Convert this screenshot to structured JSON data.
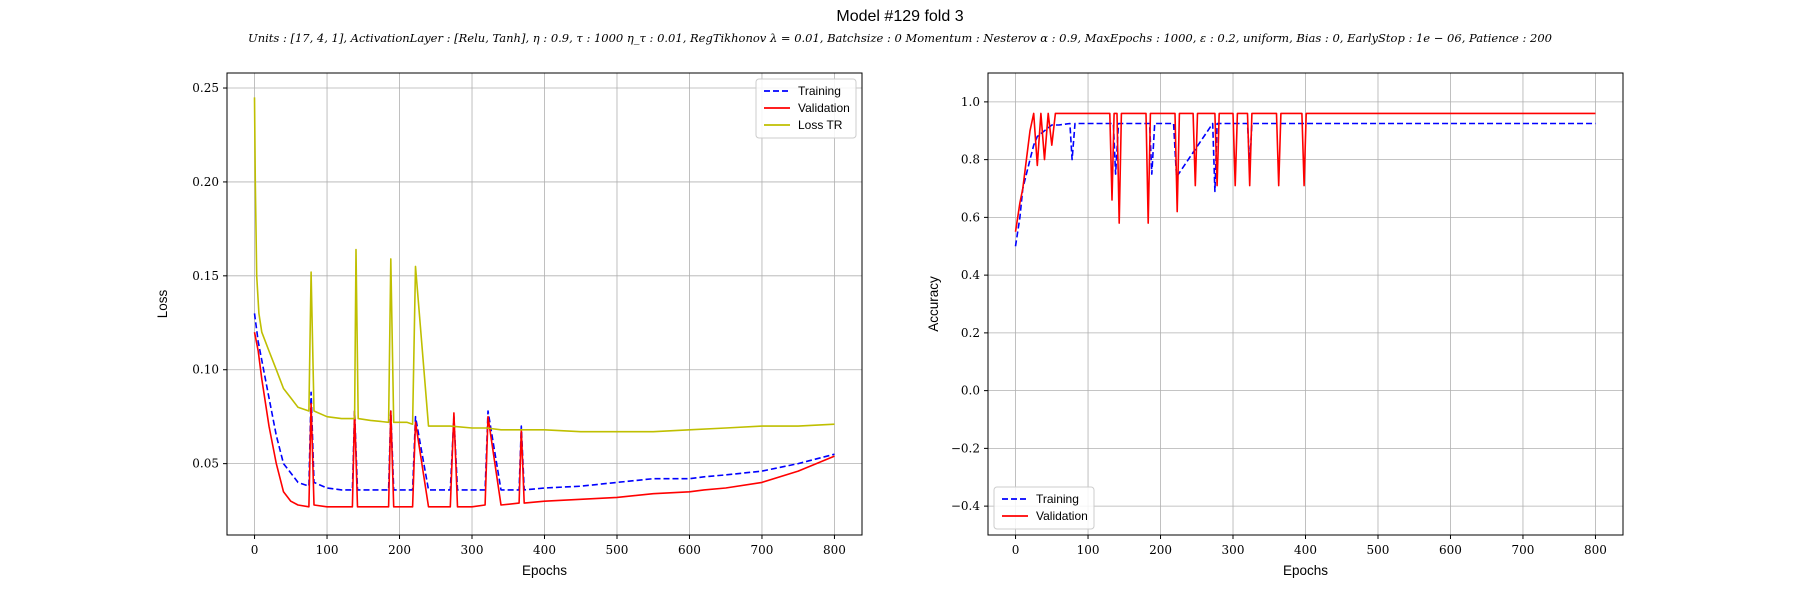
{
  "figure": {
    "title": "Model #129 fold 3",
    "subtitle": "Units : [17, 4, 1], ActivationLayer : [Relu, Tanh], η : 0.9, τ : 1000 η_τ : 0.01, RegTikhonov λ = 0.01, Batchsize : 0 Momentum : Nesterov α : 0.9, MaxEpochs : 1000, ε : 0.2, uniform, Bias : 0, EarlyStop : 1e − 06, Patience : 200"
  },
  "chart_data": [
    {
      "id": "loss",
      "type": "line",
      "title": "",
      "xlabel": "Epochs",
      "ylabel": "Loss",
      "xlim": [
        -38,
        838
      ],
      "ylim": [
        0.012,
        0.258
      ],
      "xticks": [
        0,
        100,
        200,
        300,
        400,
        500,
        600,
        700,
        800
      ],
      "yticks": [
        0.05,
        0.1,
        0.15,
        0.2,
        0.25
      ],
      "yticklabels": [
        "0.05",
        "0.10",
        "0.15",
        "0.20",
        "0.25"
      ],
      "grid": true,
      "legend_position": "top-right",
      "series": [
        {
          "name": "Training",
          "color": "#0000ff",
          "style": "dashed",
          "x": [
            0,
            5,
            10,
            20,
            30,
            40,
            50,
            60,
            75,
            78,
            82,
            100,
            120,
            135,
            138,
            142,
            160,
            185,
            188,
            192,
            210,
            218,
            222,
            240,
            270,
            275,
            280,
            300,
            318,
            322,
            340,
            365,
            368,
            372,
            400,
            450,
            500,
            550,
            600,
            620,
            650,
            700,
            750,
            800
          ],
          "y": [
            0.13,
            0.115,
            0.105,
            0.085,
            0.065,
            0.05,
            0.045,
            0.04,
            0.038,
            0.088,
            0.04,
            0.037,
            0.036,
            0.036,
            0.078,
            0.036,
            0.036,
            0.036,
            0.078,
            0.036,
            0.036,
            0.036,
            0.075,
            0.036,
            0.036,
            0.075,
            0.036,
            0.036,
            0.036,
            0.078,
            0.036,
            0.036,
            0.07,
            0.036,
            0.037,
            0.038,
            0.04,
            0.042,
            0.042,
            0.043,
            0.044,
            0.046,
            0.05,
            0.055
          ]
        },
        {
          "name": "Validation",
          "color": "#ff0000",
          "style": "solid",
          "x": [
            0,
            5,
            10,
            20,
            30,
            40,
            50,
            60,
            75,
            78,
            82,
            100,
            120,
            135,
            138,
            142,
            160,
            185,
            188,
            192,
            210,
            218,
            222,
            240,
            270,
            275,
            280,
            300,
            318,
            322,
            340,
            365,
            368,
            372,
            400,
            450,
            500,
            550,
            600,
            620,
            650,
            700,
            750,
            800
          ],
          "y": [
            0.12,
            0.11,
            0.095,
            0.07,
            0.05,
            0.035,
            0.03,
            0.028,
            0.027,
            0.082,
            0.028,
            0.027,
            0.027,
            0.027,
            0.078,
            0.027,
            0.027,
            0.027,
            0.078,
            0.027,
            0.027,
            0.027,
            0.072,
            0.027,
            0.027,
            0.077,
            0.027,
            0.027,
            0.028,
            0.075,
            0.028,
            0.029,
            0.068,
            0.029,
            0.03,
            0.031,
            0.032,
            0.034,
            0.035,
            0.036,
            0.037,
            0.04,
            0.046,
            0.054
          ]
        },
        {
          "name": "Loss TR",
          "color": "#bfbf00",
          "style": "solid",
          "x": [
            0,
            1,
            3,
            6,
            10,
            20,
            30,
            40,
            50,
            60,
            75,
            78,
            82,
            100,
            120,
            138,
            140,
            143,
            160,
            185,
            188,
            192,
            210,
            218,
            222,
            240,
            270,
            300,
            320,
            340,
            370,
            400,
            450,
            500,
            550,
            600,
            650,
            700,
            750,
            800
          ],
          "y": [
            0.245,
            0.2,
            0.15,
            0.13,
            0.12,
            0.11,
            0.1,
            0.09,
            0.085,
            0.08,
            0.078,
            0.152,
            0.078,
            0.075,
            0.074,
            0.074,
            0.164,
            0.074,
            0.073,
            0.072,
            0.159,
            0.072,
            0.072,
            0.071,
            0.155,
            0.07,
            0.07,
            0.069,
            0.069,
            0.068,
            0.068,
            0.068,
            0.067,
            0.067,
            0.067,
            0.068,
            0.069,
            0.07,
            0.07,
            0.071
          ]
        }
      ]
    },
    {
      "id": "accuracy",
      "type": "line",
      "title": "",
      "xlabel": "Epochs",
      "ylabel": "Accuracy",
      "xlim": [
        -38,
        838
      ],
      "ylim": [
        -0.5,
        1.1
      ],
      "xticks": [
        0,
        100,
        200,
        300,
        400,
        500,
        600,
        700,
        800
      ],
      "yticks": [
        -0.4,
        -0.2,
        0.0,
        0.2,
        0.4,
        0.6,
        0.8,
        1.0
      ],
      "yticklabels": [
        "−0.4",
        "−0.2",
        "0.0",
        "0.2",
        "0.4",
        "0.6",
        "0.8",
        "1.0"
      ],
      "grid": true,
      "legend_position": "bottom-left",
      "series": [
        {
          "name": "Training",
          "color": "#0000ff",
          "style": "dashed",
          "x": [
            0,
            3,
            6,
            10,
            15,
            20,
            25,
            30,
            40,
            50,
            60,
            75,
            78,
            82,
            100,
            135,
            138,
            142,
            185,
            188,
            192,
            218,
            222,
            272,
            275,
            278,
            320,
            323,
            326,
            400,
            500,
            600,
            700,
            800
          ],
          "y": [
            0.5,
            0.55,
            0.6,
            0.7,
            0.75,
            0.8,
            0.85,
            0.88,
            0.9,
            0.92,
            0.92,
            0.925,
            0.8,
            0.925,
            0.925,
            0.925,
            0.75,
            0.925,
            0.925,
            0.75,
            0.925,
            0.925,
            0.74,
            0.925,
            0.69,
            0.925,
            0.925,
            0.78,
            0.925,
            0.925,
            0.925,
            0.925,
            0.925,
            0.925
          ]
        },
        {
          "name": "Validation",
          "color": "#ff0000",
          "style": "solid",
          "x": [
            0,
            3,
            6,
            10,
            15,
            20,
            25,
            30,
            35,
            40,
            45,
            50,
            55,
            100,
            130,
            133,
            136,
            140,
            143,
            146,
            180,
            183,
            186,
            220,
            223,
            226,
            245,
            248,
            251,
            275,
            278,
            281,
            300,
            303,
            306,
            320,
            323,
            326,
            360,
            363,
            366,
            395,
            398,
            401,
            500,
            600,
            700,
            800
          ],
          "y": [
            0.55,
            0.6,
            0.65,
            0.7,
            0.8,
            0.9,
            0.96,
            0.78,
            0.96,
            0.8,
            0.96,
            0.85,
            0.96,
            0.96,
            0.96,
            0.66,
            0.96,
            0.96,
            0.58,
            0.96,
            0.96,
            0.58,
            0.96,
            0.96,
            0.62,
            0.96,
            0.96,
            0.71,
            0.96,
            0.96,
            0.71,
            0.96,
            0.96,
            0.71,
            0.96,
            0.96,
            0.71,
            0.96,
            0.96,
            0.71,
            0.96,
            0.96,
            0.71,
            0.96,
            0.96,
            0.96,
            0.96,
            0.96
          ]
        }
      ]
    }
  ]
}
